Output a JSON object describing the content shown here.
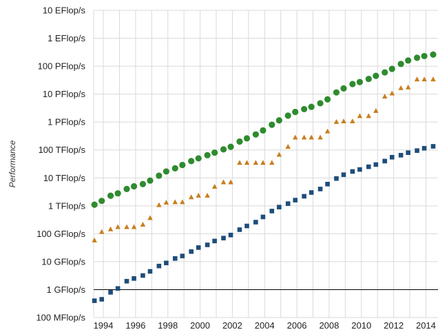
{
  "chart_data": {
    "type": "scatter",
    "title": "",
    "xlabel": "",
    "ylabel": "Performance",
    "y_scale": "log10",
    "ylim": [
      100000000.0,
      1e+19
    ],
    "xlim": [
      1993.4,
      2014.75
    ],
    "grid": {
      "horizontal": true,
      "vertical": true
    },
    "x_ticks": [
      {
        "value": 1994,
        "label": "1994"
      },
      {
        "value": 1996,
        "label": "1996"
      },
      {
        "value": 1998,
        "label": "1998"
      },
      {
        "value": 2000,
        "label": "2000"
      },
      {
        "value": 2002,
        "label": "2002"
      },
      {
        "value": 2004,
        "label": "2004"
      },
      {
        "value": 2006,
        "label": "2006"
      },
      {
        "value": 2008,
        "label": "2008"
      },
      {
        "value": 2010,
        "label": "2010"
      },
      {
        "value": 2012,
        "label": "2012"
      },
      {
        "value": 2014,
        "label": "2014"
      }
    ],
    "y_ticks": [
      {
        "value": 100000000.0,
        "label": "100 MFlop/s"
      },
      {
        "value": 1000000000.0,
        "label": "1 GFlop/s"
      },
      {
        "value": 10000000000.0,
        "label": "10 GFlop/s"
      },
      {
        "value": 100000000000.0,
        "label": "100 GFlop/s"
      },
      {
        "value": 1000000000000.0,
        "label": "1 TFlop/s"
      },
      {
        "value": 10000000000000.0,
        "label": "10 TFlop/s"
      },
      {
        "value": 100000000000000.0,
        "label": "100 TFlop/s"
      },
      {
        "value": 1000000000000000.0,
        "label": "1 PFlop/s"
      },
      {
        "value": 1e+16,
        "label": "10 PFlop/s"
      },
      {
        "value": 1e+17,
        "label": "100 PFlop/s"
      },
      {
        "value": 1e+18,
        "label": "1 EFlop/s"
      },
      {
        "value": 1e+19,
        "label": "10 EFlop/s"
      }
    ],
    "reference_line": {
      "value": 1000000000.0
    },
    "series": [
      {
        "marker": "circle",
        "color": "#2e8b2e",
        "x": [
          1993.45,
          1993.9,
          1994.45,
          1994.9,
          1995.45,
          1995.9,
          1996.45,
          1996.9,
          1997.45,
          1997.9,
          1998.45,
          1998.9,
          1999.45,
          1999.9,
          2000.45,
          2000.9,
          2001.45,
          2001.9,
          2002.45,
          2002.9,
          2003.45,
          2003.9,
          2004.45,
          2004.9,
          2005.45,
          2005.9,
          2006.45,
          2006.9,
          2007.45,
          2007.9,
          2008.45,
          2008.9,
          2009.45,
          2009.9,
          2010.45,
          2010.9,
          2011.45,
          2011.9,
          2012.45,
          2012.9,
          2013.45,
          2013.9,
          2014.45
        ],
        "y": [
          1100000000000.0,
          1500000000000.0,
          2300000000000.0,
          2800000000000.0,
          4000000000000.0,
          5000000000000.0,
          6000000000000.0,
          8000000000000.0,
          12000000000000.0,
          17000000000000.0,
          22000000000000.0,
          29000000000000.0,
          40000000000000.0,
          50000000000000.0,
          65000000000000.0,
          80000000000000.0,
          105000000000000.0,
          130000000000000.0,
          200000000000000.0,
          260000000000000.0,
          360000000000000.0,
          500000000000000.0,
          800000000000000.0,
          1150000000000000.0,
          1700000000000000.0,
          2300000000000000.0,
          2900000000000000.0,
          3500000000000000.0,
          4700000000000000.0,
          6500000000000000.0,
          1.15e+16,
          1.6e+16,
          2.3e+16,
          2.7e+16,
          3.5e+16,
          4.5e+16,
          6e+16,
          8e+16,
          1.2e+17,
          1.6e+17,
          2e+17,
          2.3e+17,
          2.6e+17
        ]
      },
      {
        "marker": "triangle",
        "color": "#c87f1e",
        "x": [
          1993.45,
          1993.9,
          1994.45,
          1994.9,
          1995.45,
          1995.9,
          1996.45,
          1996.9,
          1997.45,
          1997.9,
          1998.45,
          1998.9,
          1999.45,
          1999.9,
          2000.45,
          2000.9,
          2001.45,
          2001.9,
          2002.45,
          2002.9,
          2003.45,
          2003.9,
          2004.45,
          2004.9,
          2005.45,
          2005.9,
          2006.45,
          2006.9,
          2007.45,
          2007.9,
          2008.45,
          2008.9,
          2009.45,
          2009.9,
          2010.45,
          2010.9,
          2011.45,
          2011.9,
          2012.45,
          2012.9,
          2013.45,
          2013.9,
          2014.45
        ],
        "y": [
          60000000000.0,
          120000000000.0,
          150000000000.0,
          180000000000.0,
          180000000000.0,
          180000000000.0,
          220000000000.0,
          380000000000.0,
          1100000000000.0,
          1350000000000.0,
          1400000000000.0,
          1400000000000.0,
          2100000000000.0,
          2400000000000.0,
          2400000000000.0,
          5000000000000.0,
          7200000000000.0,
          7200000000000.0,
          36000000000000.0,
          36000000000000.0,
          36000000000000.0,
          36000000000000.0,
          36000000000000.0,
          70000000000000.0,
          135000000000000.0,
          290000000000000.0,
          290000000000000.0,
          290000000000000.0,
          290000000000000.0,
          480000000000000.0,
          1050000000000000.0,
          1100000000000000.0,
          1100000000000000.0,
          1700000000000000.0,
          1700000000000000.0,
          2600000000000000.0,
          8500000000000000.0,
          1.1e+16,
          1.7e+16,
          1.8e+16,
          3.5e+16,
          3.5e+16,
          3.5e+16
        ]
      },
      {
        "marker": "square",
        "color": "#1e4d7b",
        "x": [
          1993.45,
          1993.9,
          1994.45,
          1994.9,
          1995.45,
          1995.9,
          1996.45,
          1996.9,
          1997.45,
          1997.9,
          1998.45,
          1998.9,
          1999.45,
          1999.9,
          2000.45,
          2000.9,
          2001.45,
          2001.9,
          2002.45,
          2002.9,
          2003.45,
          2003.9,
          2004.45,
          2004.9,
          2005.45,
          2005.9,
          2006.45,
          2006.9,
          2007.45,
          2007.9,
          2008.45,
          2008.9,
          2009.45,
          2009.9,
          2010.45,
          2010.9,
          2011.45,
          2011.9,
          2012.45,
          2012.9,
          2013.45,
          2013.9,
          2014.45
        ],
        "y": [
          400000000.0,
          450000000.0,
          800000000.0,
          1100000000.0,
          2000000000.0,
          2500000000.0,
          3200000000.0,
          4500000000.0,
          7000000000.0,
          9000000000.0,
          13000000000.0,
          16000000000.0,
          23000000000.0,
          32000000000.0,
          40000000000.0,
          55000000000.0,
          70000000000.0,
          90000000000.0,
          140000000000.0,
          190000000000.0,
          260000000000.0,
          400000000000.0,
          650000000000.0,
          900000000000.0,
          1200000000000.0,
          1600000000000.0,
          2200000000000.0,
          3000000000000.0,
          4000000000000.0,
          6000000000000.0,
          9500000000000.0,
          13000000000000.0,
          17000000000000.0,
          20000000000000.0,
          25000000000000.0,
          30000000000000.0,
          40000000000000.0,
          55000000000000.0,
          65000000000000.0,
          80000000000000.0,
          95000000000000.0,
          115000000000000.0,
          135000000000000.0
        ]
      }
    ]
  }
}
